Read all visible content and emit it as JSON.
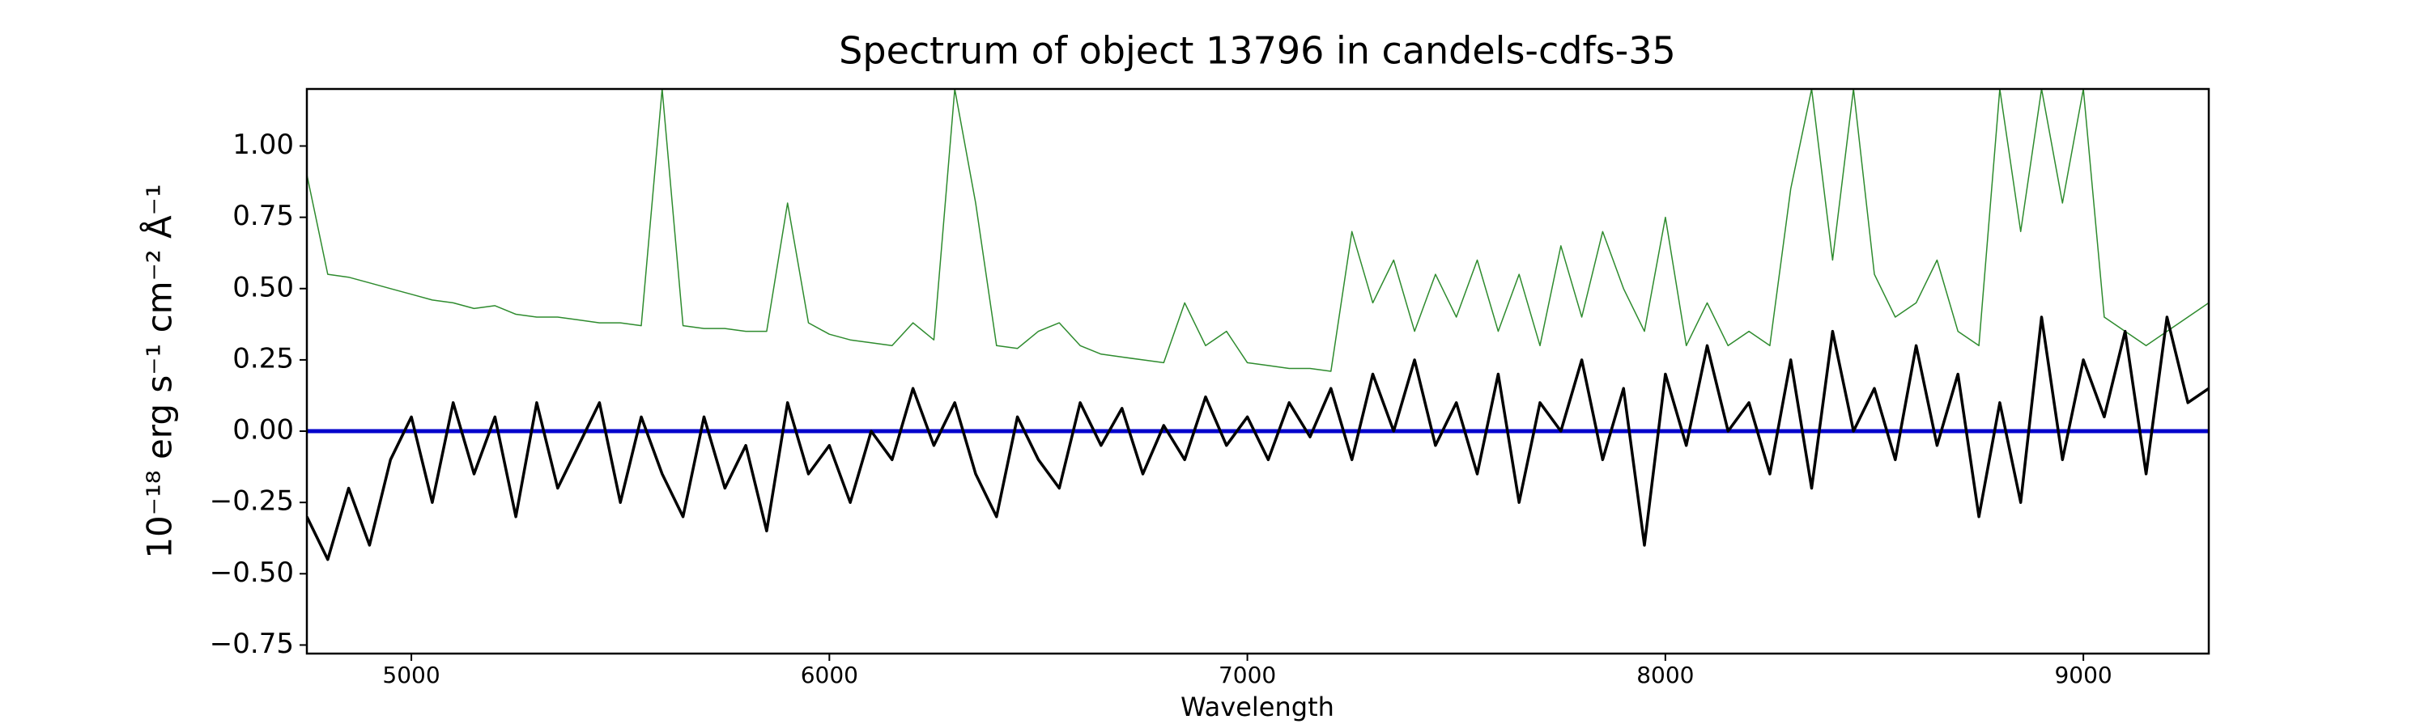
{
  "chart_data": {
    "type": "line",
    "title": "Spectrum of object 13796 in candels-cdfs-35",
    "xlabel": "Wavelength",
    "ylabel": "10⁻¹⁸ erg s⁻¹ cm⁻² Å⁻¹",
    "xlim": [
      4750,
      9300
    ],
    "ylim": [
      -0.78,
      1.2
    ],
    "xticks": [
      5000,
      6000,
      7000,
      8000,
      9000
    ],
    "yticks": [
      {
        "value": 1,
        "label": "1.00"
      },
      {
        "value": 0.75,
        "label": "0.75"
      },
      {
        "value": 0.5,
        "label": "0.50"
      },
      {
        "value": 0.25,
        "label": "0.25"
      },
      {
        "value": 0,
        "label": "0.00"
      },
      {
        "value": -0.25,
        "label": "−0.25"
      },
      {
        "value": -0.5,
        "label": "−0.50"
      },
      {
        "value": -0.75,
        "label": "−0.75"
      }
    ],
    "grid": false,
    "x": [
      4750,
      4800,
      4850,
      4900,
      4950,
      5000,
      5050,
      5100,
      5150,
      5200,
      5250,
      5300,
      5350,
      5400,
      5450,
      5500,
      5550,
      5600,
      5650,
      5700,
      5750,
      5800,
      5850,
      5900,
      5950,
      6000,
      6050,
      6100,
      6150,
      6200,
      6250,
      6300,
      6350,
      6400,
      6450,
      6500,
      6550,
      6600,
      6650,
      6700,
      6750,
      6800,
      6850,
      6900,
      6950,
      7000,
      7050,
      7100,
      7150,
      7200,
      7250,
      7300,
      7350,
      7400,
      7450,
      7500,
      7550,
      7600,
      7650,
      7700,
      7750,
      7800,
      7850,
      7900,
      7950,
      8000,
      8050,
      8100,
      8150,
      8200,
      8250,
      8300,
      8350,
      8400,
      8450,
      8500,
      8550,
      8600,
      8650,
      8700,
      8750,
      8800,
      8850,
      8900,
      8950,
      9000,
      9050,
      9100,
      9150,
      9200,
      9250,
      9300
    ],
    "series": [
      {
        "color": "#2e8b2e",
        "width": 1.5,
        "values": [
          0.9,
          0.55,
          0.54,
          0.52,
          0.5,
          0.48,
          0.46,
          0.45,
          0.43,
          0.44,
          0.41,
          0.4,
          0.4,
          0.39,
          0.38,
          0.38,
          0.37,
          1.2,
          0.37,
          0.36,
          0.36,
          0.35,
          0.35,
          0.8,
          0.38,
          0.34,
          0.32,
          0.31,
          0.3,
          0.38,
          0.32,
          1.2,
          0.8,
          0.3,
          0.29,
          0.35,
          0.38,
          0.3,
          0.27,
          0.26,
          0.25,
          0.24,
          0.45,
          0.3,
          0.35,
          0.24,
          0.23,
          0.22,
          0.22,
          0.21,
          0.7,
          0.45,
          0.6,
          0.35,
          0.55,
          0.4,
          0.6,
          0.35,
          0.55,
          0.3,
          0.65,
          0.4,
          0.7,
          0.5,
          0.35,
          0.75,
          0.3,
          0.45,
          0.3,
          0.35,
          0.3,
          0.85,
          1.2,
          0.6,
          1.2,
          0.55,
          0.4,
          0.45,
          0.6,
          0.35,
          0.3,
          1.2,
          0.7,
          1.2,
          0.8,
          1.2,
          0.4,
          0.35,
          0.3,
          0.35,
          0.4,
          0.45
        ]
      },
      {
        "color": "#0000cc",
        "width": 5,
        "values": [
          0,
          0,
          0,
          0,
          0,
          0,
          0,
          0,
          0,
          0,
          0,
          0,
          0,
          0,
          0,
          0,
          0,
          0,
          0,
          0,
          0,
          0,
          0,
          0,
          0,
          0,
          0,
          0,
          0,
          0,
          0,
          0,
          0,
          0,
          0,
          0,
          0,
          0,
          0,
          0,
          0,
          0,
          0,
          0,
          0,
          0,
          0,
          0,
          0,
          0,
          0,
          0,
          0,
          0,
          0,
          0,
          0,
          0,
          0,
          0,
          0,
          0,
          0,
          0,
          0,
          0,
          0,
          0,
          0,
          0,
          0,
          0,
          0,
          0,
          0,
          0,
          0,
          0,
          0,
          0,
          0,
          0,
          0,
          0,
          0,
          0,
          0,
          0,
          0,
          0,
          0,
          0
        ]
      },
      {
        "color": "#000000",
        "width": 3.5,
        "values": [
          -0.3,
          -0.45,
          -0.2,
          -0.4,
          -0.1,
          0.05,
          -0.25,
          0.1,
          -0.15,
          0.05,
          -0.3,
          0.1,
          -0.2,
          -0.05,
          0.1,
          -0.25,
          0.05,
          -0.15,
          -0.3,
          0.05,
          -0.2,
          -0.05,
          -0.35,
          0.1,
          -0.15,
          -0.05,
          -0.25,
          0,
          -0.1,
          0.15,
          -0.05,
          0.1,
          -0.15,
          -0.3,
          0.05,
          -0.1,
          -0.2,
          0.1,
          -0.05,
          0.08,
          -0.15,
          0.02,
          -0.1,
          0.12,
          -0.05,
          0.05,
          -0.1,
          0.1,
          -0.02,
          0.15,
          -0.1,
          0.2,
          0,
          0.25,
          -0.05,
          0.1,
          -0.15,
          0.2,
          -0.25,
          0.1,
          0,
          0.25,
          -0.1,
          0.15,
          -0.4,
          0.2,
          -0.05,
          0.3,
          0,
          0.1,
          -0.15,
          0.25,
          -0.2,
          0.35,
          0,
          0.15,
          -0.1,
          0.3,
          -0.05,
          0.2,
          -0.3,
          0.1,
          -0.25,
          0.4,
          -0.1,
          0.25,
          0.05,
          0.35,
          -0.15,
          0.4,
          0.1,
          0.15
        ]
      }
    ]
  }
}
